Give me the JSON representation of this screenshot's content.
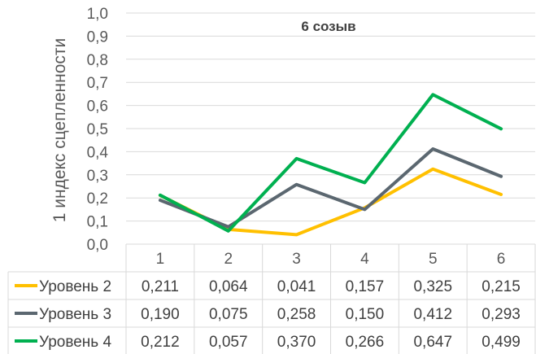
{
  "chart_data": {
    "type": "line",
    "title": "6 созыв",
    "xlabel": "",
    "ylabel": "1 индекс сцепленности",
    "categories": [
      "1",
      "2",
      "3",
      "4",
      "5",
      "6"
    ],
    "ylim": [
      0,
      1
    ],
    "yticks": [
      "0,0",
      "0,1",
      "0,2",
      "0,3",
      "0,4",
      "0,5",
      "0,6",
      "0,7",
      "0,8",
      "0,9",
      "1,0"
    ],
    "grid": true,
    "legend": "data-table",
    "series": [
      {
        "name": "Уровень 2",
        "color": "#FFC000",
        "values": [
          0.211,
          0.064,
          0.041,
          0.157,
          0.325,
          0.215
        ],
        "labels": [
          "0,211",
          "0,064",
          "0,041",
          "0,157",
          "0,325",
          "0,215"
        ]
      },
      {
        "name": "Уровень 3",
        "color": "#5B6770",
        "values": [
          0.19,
          0.075,
          0.258,
          0.15,
          0.412,
          0.293
        ],
        "labels": [
          "0,190",
          "0,075",
          "0,258",
          "0,150",
          "0,412",
          "0,293"
        ]
      },
      {
        "name": "Уровень 4",
        "color": "#00B050",
        "values": [
          0.212,
          0.057,
          0.37,
          0.266,
          0.647,
          0.499
        ],
        "labels": [
          "0,212",
          "0,057",
          "0,370",
          "0,266",
          "0,647",
          "0,499"
        ]
      }
    ]
  }
}
